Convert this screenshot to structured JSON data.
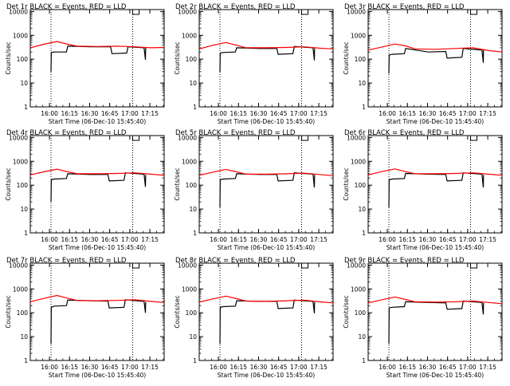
{
  "chart_data": {
    "type": "line",
    "x_axis_label": "Start Time (06-Dec-10 15:45:40)",
    "y_axis_label": "Counts/sec",
    "y_scale": "log",
    "y_range": [
      1,
      12000
    ],
    "y_ticks": [
      "1",
      "10",
      "100",
      "1000",
      "10000"
    ],
    "x_range_minutes": [
      0,
      100
    ],
    "x_ticks": [
      {
        "label": "16:00",
        "min": 14.33
      },
      {
        "label": "16:15",
        "min": 29.33
      },
      {
        "label": "16:30",
        "min": 44.33
      },
      {
        "label": "16:45",
        "min": 59.33
      },
      {
        "label": "17:00",
        "min": 74.33
      },
      {
        "label": "17:15",
        "min": 89.33
      }
    ],
    "vlines_min": [
      15.5,
      76.5
    ],
    "series_colors": {
      "events": "#000000",
      "lld": "#ff0000"
    },
    "panels": [
      {
        "title": "Det 1r BLACK = Events, RED = LLD",
        "events": [
          [
            15.5,
            30
          ],
          [
            15.7,
            190
          ],
          [
            18,
            200
          ],
          [
            27,
            200
          ],
          [
            28,
            350
          ],
          [
            45,
            330
          ],
          [
            60,
            330
          ],
          [
            61,
            170
          ],
          [
            72,
            180
          ],
          [
            73,
            330
          ],
          [
            85,
            300
          ],
          [
            86,
            95
          ],
          [
            86.2,
            300
          ]
        ],
        "lld": [
          [
            0,
            300
          ],
          [
            10,
            420
          ],
          [
            20,
            550
          ],
          [
            28,
            420
          ],
          [
            35,
            350
          ],
          [
            50,
            340
          ],
          [
            65,
            350
          ],
          [
            78,
            330
          ],
          [
            90,
            300
          ],
          [
            100,
            310
          ]
        ]
      },
      {
        "title": "Det 2r BLACK = Events, RED = LLD",
        "events": [
          [
            15.5,
            28
          ],
          [
            15.7,
            180
          ],
          [
            18,
            190
          ],
          [
            27,
            200
          ],
          [
            28,
            300
          ],
          [
            45,
            280
          ],
          [
            58,
            280
          ],
          [
            59,
            160
          ],
          [
            70,
            170
          ],
          [
            71,
            340
          ],
          [
            85,
            300
          ],
          [
            86,
            90
          ],
          [
            86.2,
            280
          ]
        ],
        "lld": [
          [
            0,
            270
          ],
          [
            10,
            380
          ],
          [
            20,
            500
          ],
          [
            28,
            380
          ],
          [
            35,
            300
          ],
          [
            50,
            300
          ],
          [
            65,
            310
          ],
          [
            78,
            330
          ],
          [
            90,
            290
          ],
          [
            100,
            270
          ]
        ]
      },
      {
        "title": "Det 3r BLACK = Events, RED = LLD",
        "events": [
          [
            15.5,
            25
          ],
          [
            15.7,
            150
          ],
          [
            18,
            160
          ],
          [
            27,
            170
          ],
          [
            28,
            280
          ],
          [
            45,
            200
          ],
          [
            58,
            210
          ],
          [
            59,
            110
          ],
          [
            70,
            120
          ],
          [
            71,
            280
          ],
          [
            85,
            240
          ],
          [
            86,
            70
          ],
          [
            86.2,
            260
          ]
        ],
        "lld": [
          [
            0,
            240
          ],
          [
            10,
            320
          ],
          [
            20,
            430
          ],
          [
            28,
            360
          ],
          [
            35,
            270
          ],
          [
            50,
            260
          ],
          [
            65,
            280
          ],
          [
            78,
            300
          ],
          [
            90,
            230
          ],
          [
            100,
            200
          ]
        ]
      },
      {
        "title": "Det 4r BLACK = Events, RED = LLD",
        "events": [
          [
            15.5,
            20
          ],
          [
            15.7,
            170
          ],
          [
            18,
            180
          ],
          [
            27,
            190
          ],
          [
            28,
            300
          ],
          [
            45,
            280
          ],
          [
            58,
            280
          ],
          [
            59,
            150
          ],
          [
            70,
            160
          ],
          [
            71,
            330
          ],
          [
            85,
            290
          ],
          [
            86,
            85
          ],
          [
            86.2,
            270
          ]
        ],
        "lld": [
          [
            0,
            270
          ],
          [
            10,
            360
          ],
          [
            20,
            470
          ],
          [
            28,
            360
          ],
          [
            35,
            300
          ],
          [
            50,
            300
          ],
          [
            65,
            310
          ],
          [
            78,
            330
          ],
          [
            90,
            290
          ],
          [
            100,
            260
          ]
        ]
      },
      {
        "title": "Det 5r BLACK = Events, RED = LLD",
        "events": [
          [
            15.5,
            12
          ],
          [
            15.7,
            170
          ],
          [
            18,
            180
          ],
          [
            27,
            190
          ],
          [
            28,
            300
          ],
          [
            45,
            280
          ],
          [
            58,
            280
          ],
          [
            59,
            150
          ],
          [
            70,
            160
          ],
          [
            71,
            330
          ],
          [
            85,
            290
          ],
          [
            86,
            80
          ],
          [
            86.2,
            270
          ]
        ],
        "lld": [
          [
            0,
            260
          ],
          [
            10,
            350
          ],
          [
            20,
            460
          ],
          [
            28,
            360
          ],
          [
            35,
            290
          ],
          [
            50,
            290
          ],
          [
            65,
            300
          ],
          [
            78,
            320
          ],
          [
            90,
            280
          ],
          [
            100,
            250
          ]
        ]
      },
      {
        "title": "Det 6r BLACK = Events, RED = LLD",
        "events": [
          [
            15.5,
            12
          ],
          [
            15.7,
            170
          ],
          [
            18,
            180
          ],
          [
            27,
            190
          ],
          [
            28,
            310
          ],
          [
            45,
            290
          ],
          [
            58,
            280
          ],
          [
            59,
            150
          ],
          [
            70,
            160
          ],
          [
            71,
            330
          ],
          [
            85,
            290
          ],
          [
            86,
            80
          ],
          [
            86.2,
            270
          ]
        ],
        "lld": [
          [
            0,
            270
          ],
          [
            10,
            370
          ],
          [
            20,
            480
          ],
          [
            28,
            370
          ],
          [
            35,
            300
          ],
          [
            50,
            300
          ],
          [
            65,
            310
          ],
          [
            78,
            330
          ],
          [
            90,
            290
          ],
          [
            100,
            260
          ]
        ]
      },
      {
        "title": "Det 7r BLACK = Events, RED = LLD",
        "events": [
          [
            15.5,
            5
          ],
          [
            15.7,
            170
          ],
          [
            18,
            190
          ],
          [
            27,
            200
          ],
          [
            28,
            340
          ],
          [
            45,
            320
          ],
          [
            58,
            310
          ],
          [
            59,
            160
          ],
          [
            70,
            170
          ],
          [
            71,
            350
          ],
          [
            85,
            300
          ],
          [
            86,
            100
          ],
          [
            86.2,
            280
          ]
        ],
        "lld": [
          [
            0,
            290
          ],
          [
            10,
            400
          ],
          [
            20,
            530
          ],
          [
            28,
            410
          ],
          [
            35,
            330
          ],
          [
            50,
            320
          ],
          [
            65,
            330
          ],
          [
            78,
            350
          ],
          [
            90,
            300
          ],
          [
            100,
            270
          ]
        ]
      },
      {
        "title": "Det 8r BLACK = Events, RED = LLD",
        "events": [
          [
            15.5,
            5
          ],
          [
            15.7,
            170
          ],
          [
            18,
            180
          ],
          [
            27,
            190
          ],
          [
            28,
            320
          ],
          [
            45,
            300
          ],
          [
            58,
            300
          ],
          [
            59,
            150
          ],
          [
            70,
            160
          ],
          [
            71,
            340
          ],
          [
            85,
            300
          ],
          [
            86,
            95
          ],
          [
            86.2,
            280
          ]
        ],
        "lld": [
          [
            0,
            280
          ],
          [
            10,
            380
          ],
          [
            20,
            500
          ],
          [
            28,
            390
          ],
          [
            35,
            310
          ],
          [
            50,
            300
          ],
          [
            65,
            320
          ],
          [
            78,
            340
          ],
          [
            90,
            290
          ],
          [
            100,
            260
          ]
        ]
      },
      {
        "title": "Det 9r BLACK = Events, RED = LLD",
        "events": [
          [
            15.5,
            5
          ],
          [
            15.7,
            160
          ],
          [
            18,
            170
          ],
          [
            27,
            180
          ],
          [
            28,
            290
          ],
          [
            45,
            270
          ],
          [
            58,
            260
          ],
          [
            59,
            140
          ],
          [
            70,
            150
          ],
          [
            71,
            310
          ],
          [
            85,
            270
          ],
          [
            86,
            85
          ],
          [
            86.2,
            260
          ]
        ],
        "lld": [
          [
            0,
            260
          ],
          [
            10,
            350
          ],
          [
            20,
            460
          ],
          [
            28,
            360
          ],
          [
            35,
            290
          ],
          [
            50,
            280
          ],
          [
            65,
            290
          ],
          [
            78,
            310
          ],
          [
            90,
            270
          ],
          [
            100,
            240
          ]
        ]
      }
    ]
  }
}
